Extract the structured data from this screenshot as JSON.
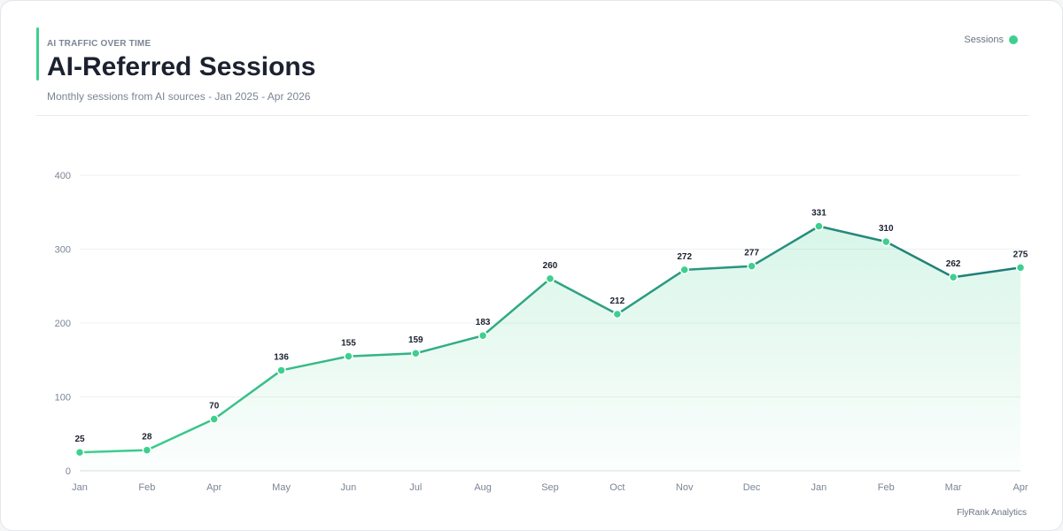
{
  "header": {
    "eyebrow": "AI TRAFFIC OVER TIME",
    "title": "AI-Referred Sessions",
    "subtitle": "Monthly sessions from AI sources - Jan 2025 - Apr 2026"
  },
  "legend": {
    "label": "Sessions",
    "color": "#3ecf8e"
  },
  "footer": {
    "text": "FlyRank Analytics"
  },
  "colors": {
    "line_start": "#3ecf8e",
    "line_end": "#1f7a78",
    "accent": "#3ecf8e"
  },
  "chart_data": {
    "type": "line",
    "title": "AI-Referred Sessions",
    "categories": [
      "Jan",
      "Feb",
      "Apr",
      "May",
      "Jun",
      "Jul",
      "Aug",
      "Sep",
      "Oct",
      "Nov",
      "Dec",
      "Jan",
      "Feb",
      "Mar",
      "Apr"
    ],
    "series": [
      {
        "name": "Sessions",
        "values": [
          25,
          28,
          70,
          136,
          155,
          159,
          183,
          260,
          212,
          272,
          277,
          331,
          310,
          262,
          275
        ]
      }
    ],
    "yticks": [
      0,
      100,
      200,
      300,
      400
    ],
    "ylim": [
      0,
      400
    ],
    "grid": true,
    "area_fill": true,
    "legend_position": "top-right"
  }
}
